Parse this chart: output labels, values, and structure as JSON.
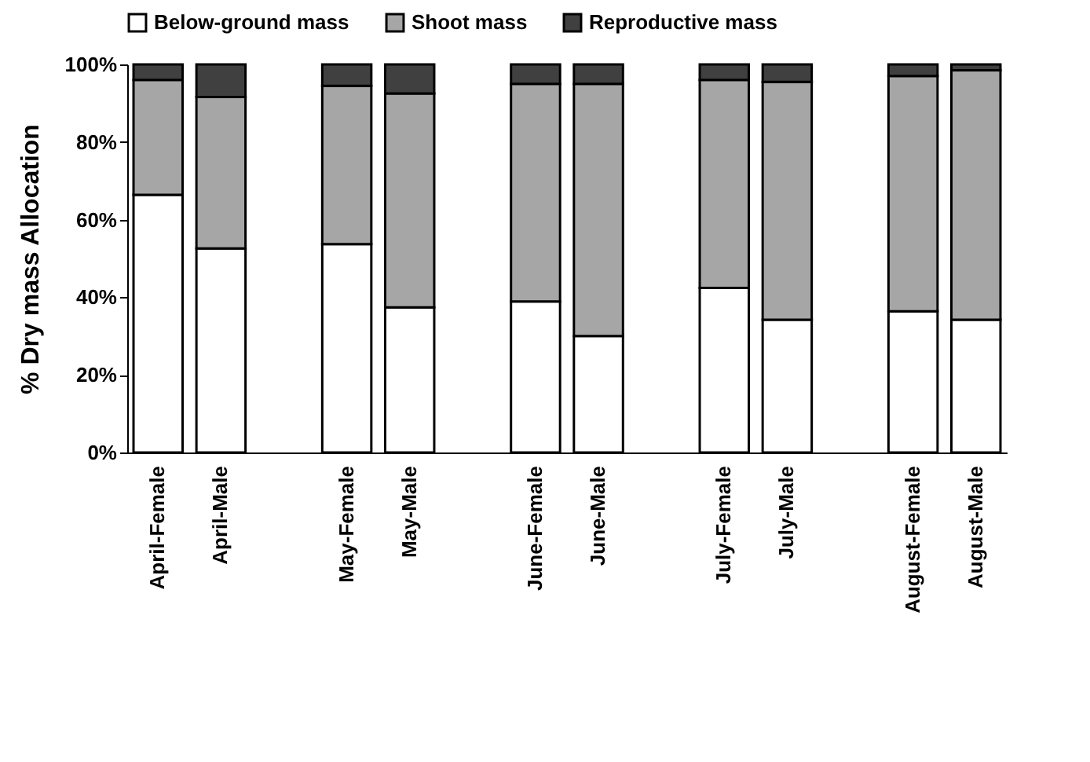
{
  "chart_data": {
    "type": "bar",
    "stacked": true,
    "ylabel": "% Dry mass Allocation",
    "categories": [
      "April-Female",
      "April-Male",
      null,
      "May-Female",
      "May-Male",
      null,
      "June-Female",
      "June-Male",
      null,
      "July-Female",
      "July-Male",
      null,
      "August-Female",
      "August-Male"
    ],
    "series": [
      {
        "name": "Below-ground mass",
        "color": "#ffffff",
        "values": [
          66.4,
          52.6,
          null,
          53.7,
          37.4,
          null,
          38.9,
          30.0,
          null,
          42.4,
          34.2,
          null,
          36.4,
          34.2
        ]
      },
      {
        "name": "Shoot mass",
        "color": "#a6a6a6",
        "values": [
          29.6,
          39.0,
          null,
          40.8,
          55.1,
          null,
          56.1,
          65.0,
          null,
          53.6,
          61.3,
          null,
          60.6,
          64.3
        ]
      },
      {
        "name": "Reproductive mass",
        "color": "#404040",
        "values": [
          4.0,
          8.4,
          null,
          5.5,
          7.5,
          null,
          5.0,
          5.0,
          null,
          4.0,
          4.5,
          null,
          3.0,
          1.5
        ]
      }
    ],
    "ylim": [
      0,
      100
    ],
    "yticks": [
      {
        "value": 0,
        "label": "0%"
      },
      {
        "value": 20,
        "label": "20%"
      },
      {
        "value": 40,
        "label": "40%"
      },
      {
        "value": 60,
        "label": "60%"
      },
      {
        "value": 80,
        "label": "80%"
      },
      {
        "value": 100,
        "label": "100%"
      }
    ],
    "grid": false,
    "legend": "top"
  }
}
